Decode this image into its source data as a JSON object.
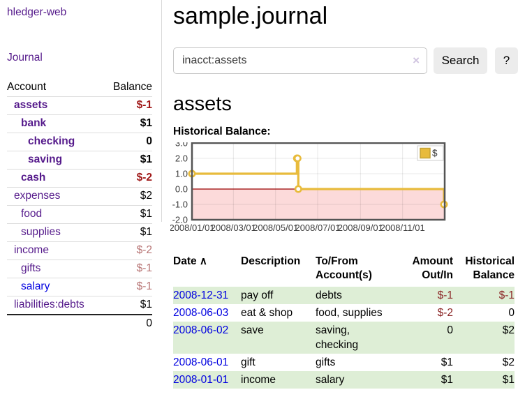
{
  "app": {
    "title": "hledger-web",
    "nav": {
      "journal": "Journal"
    }
  },
  "sidebar": {
    "columns": {
      "account": "Account",
      "balance": "Balance"
    },
    "accounts": [
      {
        "name": "assets",
        "balance": "$-1"
      },
      {
        "name": "bank",
        "balance": "$1"
      },
      {
        "name": "checking",
        "balance": "0"
      },
      {
        "name": "saving",
        "balance": "$1"
      },
      {
        "name": "cash",
        "balance": "$-2"
      },
      {
        "name": "expenses",
        "balance": "$2"
      },
      {
        "name": "food",
        "balance": "$1"
      },
      {
        "name": "supplies",
        "balance": "$1"
      },
      {
        "name": "income",
        "balance": "$-2"
      },
      {
        "name": "gifts",
        "balance": "$-1"
      },
      {
        "name": "salary",
        "balance": "$-1"
      },
      {
        "name": "liabilities:debts",
        "balance": "$1"
      }
    ],
    "total": "0"
  },
  "main": {
    "title": "sample.journal",
    "search": {
      "value": "inacct:assets",
      "clear": "×",
      "button": "Search",
      "help": "?"
    },
    "account_heading": "assets",
    "chart_title": "Historical Balance:"
  },
  "register": {
    "headers": {
      "date": "Date",
      "sort_indicator": "∧",
      "description": "Description",
      "accounts": "To/From Account(s)",
      "amount": "Amount Out/In",
      "balance": "Historical Balance"
    },
    "rows": [
      {
        "date": "2008-12-31",
        "description": "pay off",
        "accounts": "debts",
        "amount": "$-1",
        "balance": "$-1"
      },
      {
        "date": "2008-06-03",
        "description": "eat & shop",
        "accounts": "food, supplies",
        "amount": "$-2",
        "balance": "0"
      },
      {
        "date": "2008-06-02",
        "description": "save",
        "accounts": "saving, checking",
        "amount": "0",
        "balance": "$2"
      },
      {
        "date": "2008-06-01",
        "description": "gift",
        "accounts": "gifts",
        "amount": "$1",
        "balance": "$2"
      },
      {
        "date": "2008-01-01",
        "description": "income",
        "accounts": "salary",
        "amount": "$1",
        "balance": "$1"
      }
    ]
  },
  "chart_data": {
    "type": "line",
    "step": true,
    "title": "Historical Balance:",
    "legend": "$",
    "legend_position": "top-right",
    "series": [
      {
        "name": "$",
        "color": "#e8bb3c",
        "points": [
          [
            "2008-01-01",
            1
          ],
          [
            "2008-06-01",
            2
          ],
          [
            "2008-06-02",
            2
          ],
          [
            "2008-06-03",
            0
          ],
          [
            "2008-12-31",
            -1
          ]
        ]
      }
    ],
    "x_start": "2008-01-01",
    "x_end": "2009-01-01",
    "x_ticks": [
      {
        "date": "2008-01-01",
        "label": "2008/01/01"
      },
      {
        "date": "2008-03-01",
        "label": "2008/03/01"
      },
      {
        "date": "2008-05-01",
        "label": "2008/05/01"
      },
      {
        "date": "2008-07-01",
        "label": "2008/07/01"
      },
      {
        "date": "2008-09-01",
        "label": "2008/09/01"
      },
      {
        "date": "2008-11-01",
        "label": "2008/11/01"
      },
      {
        "date": "2009-01-01",
        "label": ""
      }
    ],
    "y_ticks": [
      "3.0",
      "2.0",
      "1.0",
      "0.0",
      "-1.0",
      "-2.0"
    ],
    "ylim": [
      -2,
      3
    ],
    "grid": true,
    "colors": {
      "negative_region": "#fcdada",
      "zero_line": "#990000",
      "border": "#545454",
      "grid": "rgba(0,0,0,0.09)",
      "tick_text": "#3c3c3c"
    }
  }
}
